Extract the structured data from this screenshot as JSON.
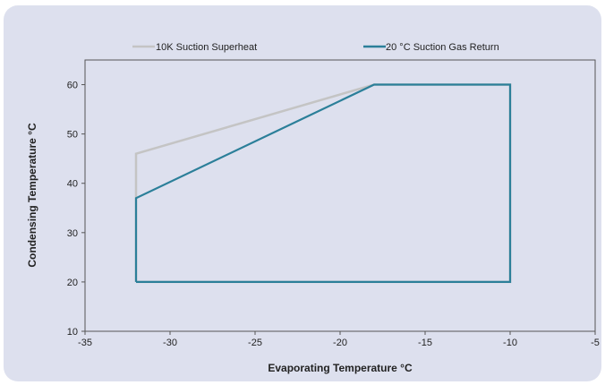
{
  "chart_data": {
    "type": "line",
    "title": "",
    "xlabel": "Evaporating Temperature °C",
    "ylabel": "Condensing Temperature °C",
    "xlim": [
      -35,
      -5
    ],
    "ylim": [
      10,
      65
    ],
    "xticks": [
      -35,
      -30,
      -25,
      -20,
      -15,
      -10,
      -5
    ],
    "yticks": [
      10,
      20,
      30,
      40,
      50,
      60
    ],
    "grid": false,
    "legend_position": "top",
    "series": [
      {
        "name": "10K Suction Superheat",
        "color": "#c4c4c4",
        "points": [
          [
            -32,
            20
          ],
          [
            -32,
            46
          ],
          [
            -18,
            60
          ],
          [
            -10,
            60
          ],
          [
            -10,
            20
          ],
          [
            -32,
            20
          ]
        ]
      },
      {
        "name": "20 °C Suction Gas Return",
        "color": "#2b7f99",
        "points": [
          [
            -32,
            20
          ],
          [
            -32,
            37
          ],
          [
            -18,
            60
          ],
          [
            -10,
            60
          ],
          [
            -10,
            20
          ],
          [
            -32,
            20
          ]
        ]
      }
    ]
  }
}
